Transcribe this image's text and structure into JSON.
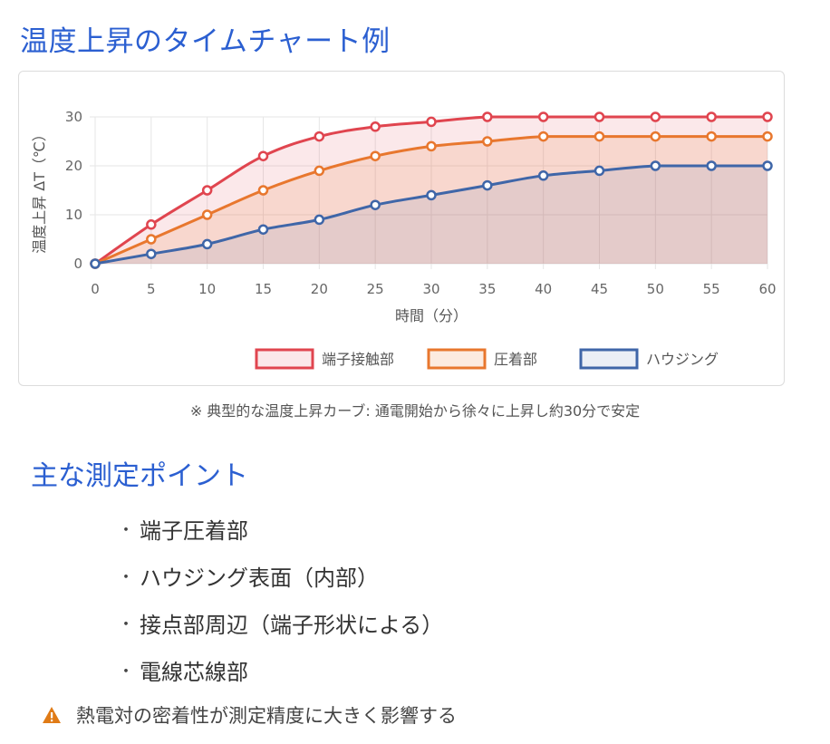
{
  "title": "温度上昇のタイムチャート例",
  "caption": "※ 典型的な温度上昇カーブ: 通電開始から徐々に上昇し約30分で安定",
  "section_title": "主な測定ポイント",
  "bullet_char": "・",
  "measurement_points": [
    "端子圧着部",
    "ハウジング表面（内部）",
    "接点部周辺（端子形状による）",
    "電線芯線部"
  ],
  "note": {
    "icon": "warning-triangle-icon",
    "text": "熱電対の密着性が測定精度に大きく影響する"
  },
  "colors": {
    "heading": "#2b5fd1",
    "warning": "#e07b16"
  },
  "chart_data": {
    "type": "area",
    "xlabel": "時間（分）",
    "ylabel": "温度上昇 ΔT（℃）",
    "x": [
      0,
      5,
      10,
      15,
      20,
      25,
      30,
      35,
      40,
      45,
      50,
      55,
      60
    ],
    "xlim": [
      0,
      60
    ],
    "ylim": [
      0,
      30
    ],
    "yticks": [
      0,
      10,
      20,
      30
    ],
    "grid": true,
    "legend": "bottom",
    "series": [
      {
        "name": "端子接触部",
        "color": "#e0454f",
        "fill": "rgba(224,69,79,0.12)",
        "values": [
          0,
          8,
          15,
          22,
          26,
          28,
          29,
          30,
          30,
          30,
          30,
          30,
          30
        ]
      },
      {
        "name": "圧着部",
        "color": "#e8772e",
        "fill": "rgba(232,119,46,0.15)",
        "values": [
          0,
          5,
          10,
          15,
          19,
          22,
          24,
          25,
          26,
          26,
          26,
          26,
          26
        ]
      },
      {
        "name": "ハウジング",
        "color": "#3f66a8",
        "fill": "rgba(63,102,168,0.10)",
        "values": [
          0,
          2,
          4,
          7,
          9,
          12,
          14,
          16,
          18,
          19,
          20,
          20,
          20
        ]
      }
    ]
  }
}
